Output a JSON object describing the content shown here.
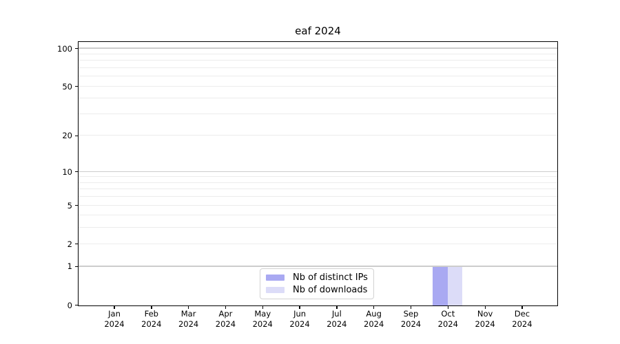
{
  "title": "eaf 2024",
  "colors": {
    "distinct_ips": "#a9a9f2",
    "downloads": "#dcdcf8",
    "grid_minor": "#ececec",
    "grid_major": "#cccccc",
    "axis_frame": "#000000",
    "legend_border": "#d2d2d2"
  },
  "legend": {
    "items": [
      {
        "label": "Nb of distinct IPs",
        "color_key": "distinct_ips"
      },
      {
        "label": "Nb of downloads",
        "color_key": "downloads"
      }
    ]
  },
  "chart_data": {
    "type": "bar",
    "title": "eaf 2024",
    "y_scale": "log1p",
    "categories": [
      "Jan",
      "Feb",
      "Mar",
      "Apr",
      "May",
      "Jun",
      "Jul",
      "Aug",
      "Sep",
      "Oct",
      "Nov",
      "Dec"
    ],
    "year": "2024",
    "series": [
      {
        "name": "Nb of distinct IPs",
        "color": "#a9a9f2",
        "values": [
          0,
          0,
          0,
          0,
          0,
          0,
          0,
          0,
          0,
          1,
          0,
          0
        ]
      },
      {
        "name": "Nb of downloads",
        "color": "#dcdcf8",
        "values": [
          0,
          0,
          0,
          0,
          0,
          0,
          0,
          0,
          0,
          1,
          0,
          0
        ]
      }
    ],
    "y_ticks": [
      100,
      50,
      20,
      10,
      5,
      2,
      1,
      0
    ],
    "grid_minor_values": [
      2,
      3,
      4,
      5,
      6,
      7,
      8,
      9,
      20,
      30,
      40,
      50,
      60,
      70,
      80,
      90
    ],
    "grid_major_values": [
      1,
      10,
      100
    ],
    "ylim": [
      0,
      112
    ],
    "xlabel": "",
    "ylabel": "",
    "grid": true,
    "legend_position": "lower center"
  }
}
